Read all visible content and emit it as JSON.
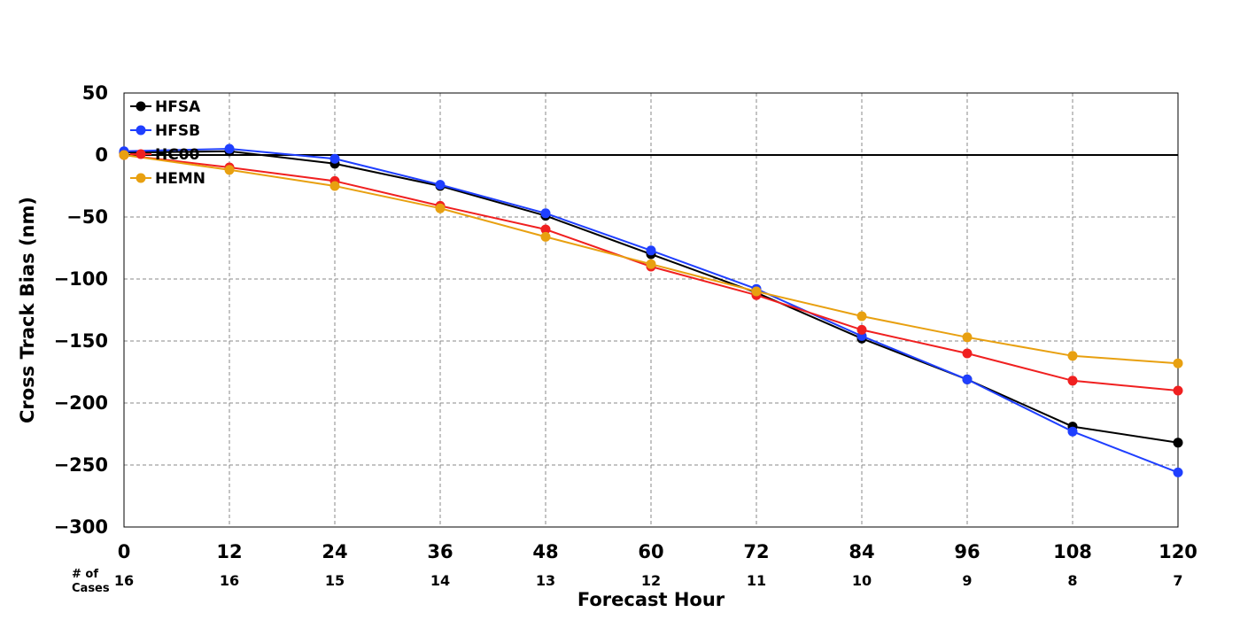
{
  "chart_data": {
    "type": "line",
    "title": "",
    "xlabel": "Forecast Hour",
    "ylabel": "Cross Track Bias (nm)",
    "x": [
      0,
      12,
      24,
      36,
      48,
      60,
      72,
      84,
      96,
      108,
      120
    ],
    "xlim": [
      0,
      120
    ],
    "ylim": [
      -300,
      50
    ],
    "yticks": [
      50,
      0,
      -50,
      -100,
      -150,
      -200,
      -250,
      -300
    ],
    "ytick_labels": [
      "50",
      "0",
      "−50",
      "−100",
      "−150",
      "−200",
      "−250",
      "−300"
    ],
    "grid": true,
    "legend_position": "top-left",
    "cases_label": [
      "# of",
      "Cases"
    ],
    "cases": [
      16,
      16,
      15,
      14,
      13,
      12,
      11,
      10,
      9,
      8,
      7
    ],
    "series": [
      {
        "name": "HFSA",
        "color": "#000000",
        "values": [
          2,
          3,
          -7,
          -25,
          -49,
          -80,
          -111,
          -148,
          -181,
          -219,
          -232
        ]
      },
      {
        "name": "HFSB",
        "color": "#1f3fff",
        "values": [
          3,
          5,
          -3,
          -24,
          -47,
          -77,
          -108,
          -146,
          -181,
          -223,
          -256
        ]
      },
      {
        "name": "HC00",
        "color": "#f02020",
        "values": [
          0,
          -10,
          -21,
          -41,
          -60,
          -90,
          -113,
          -141,
          -160,
          -182,
          -190
        ]
      },
      {
        "name": "HEMN",
        "color": "#e8a010",
        "values": [
          0,
          -12,
          -25,
          -43,
          -66,
          -88,
          -110,
          -130,
          -147,
          -162,
          -168
        ]
      }
    ]
  }
}
